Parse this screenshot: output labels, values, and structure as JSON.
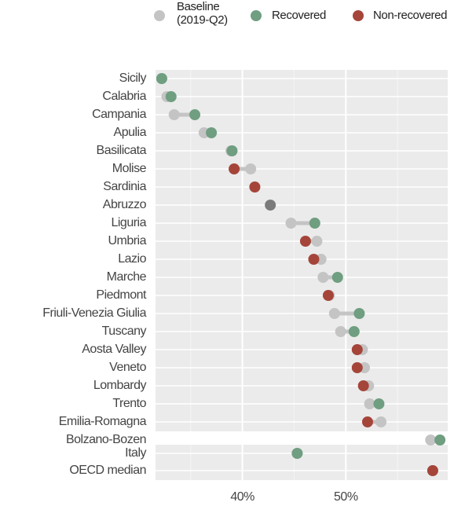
{
  "chart_data": {
    "type": "dumbbell",
    "categories": [
      "Sicily",
      "Calabria",
      "Campania",
      "Apulia",
      "Basilicata",
      "Molise",
      "Sardinia",
      "Abruzzo",
      "Liguria",
      "Umbria",
      "Lazio",
      "Marche",
      "Piedmont",
      "Friuli-Venezia Giulia",
      "Tuscany",
      "Aosta Valley",
      "Veneto",
      "Lombardy",
      "Trento",
      "Emilia-Romagna",
      "Bolzano-Bozen",
      "Italy",
      "OECD median"
    ],
    "series": [
      {
        "name": "Baseline\n(2019-Q2)",
        "color": "#c4c4c4",
        "values": [
          32.2,
          32.7,
          33.4,
          36.3,
          38.9,
          40.8,
          41.2,
          42.7,
          44.7,
          47.2,
          47.6,
          47.8,
          48.4,
          48.9,
          49.5,
          51.6,
          51.8,
          52.2,
          52.3,
          53.4,
          58.2,
          45.3,
          58.4
        ]
      },
      {
        "name": "Recovered",
        "color": "#6f9e80",
        "values": [
          32.2,
          33.1,
          35.4,
          37.0,
          39.0,
          null,
          null,
          null,
          47.0,
          null,
          null,
          49.2,
          null,
          51.3,
          50.8,
          null,
          null,
          null,
          53.2,
          null,
          59.1,
          45.3,
          null
        ]
      },
      {
        "name": "Non-recovered",
        "color": "#a5453a",
        "values": [
          null,
          null,
          null,
          null,
          null,
          39.2,
          41.2,
          null,
          null,
          46.1,
          46.9,
          null,
          48.3,
          null,
          null,
          51.1,
          51.1,
          51.7,
          null,
          52.1,
          null,
          null,
          58.4
        ]
      }
    ],
    "unchanged_color": "#7b7b7b",
    "xlim": [
      31.6,
      59.85
    ],
    "xticks": [
      {
        "value": 40,
        "label": "40%"
      },
      {
        "value": 50,
        "label": "50%"
      }
    ],
    "minor_gridlines": [
      35,
      45,
      55
    ],
    "grid": true
  }
}
